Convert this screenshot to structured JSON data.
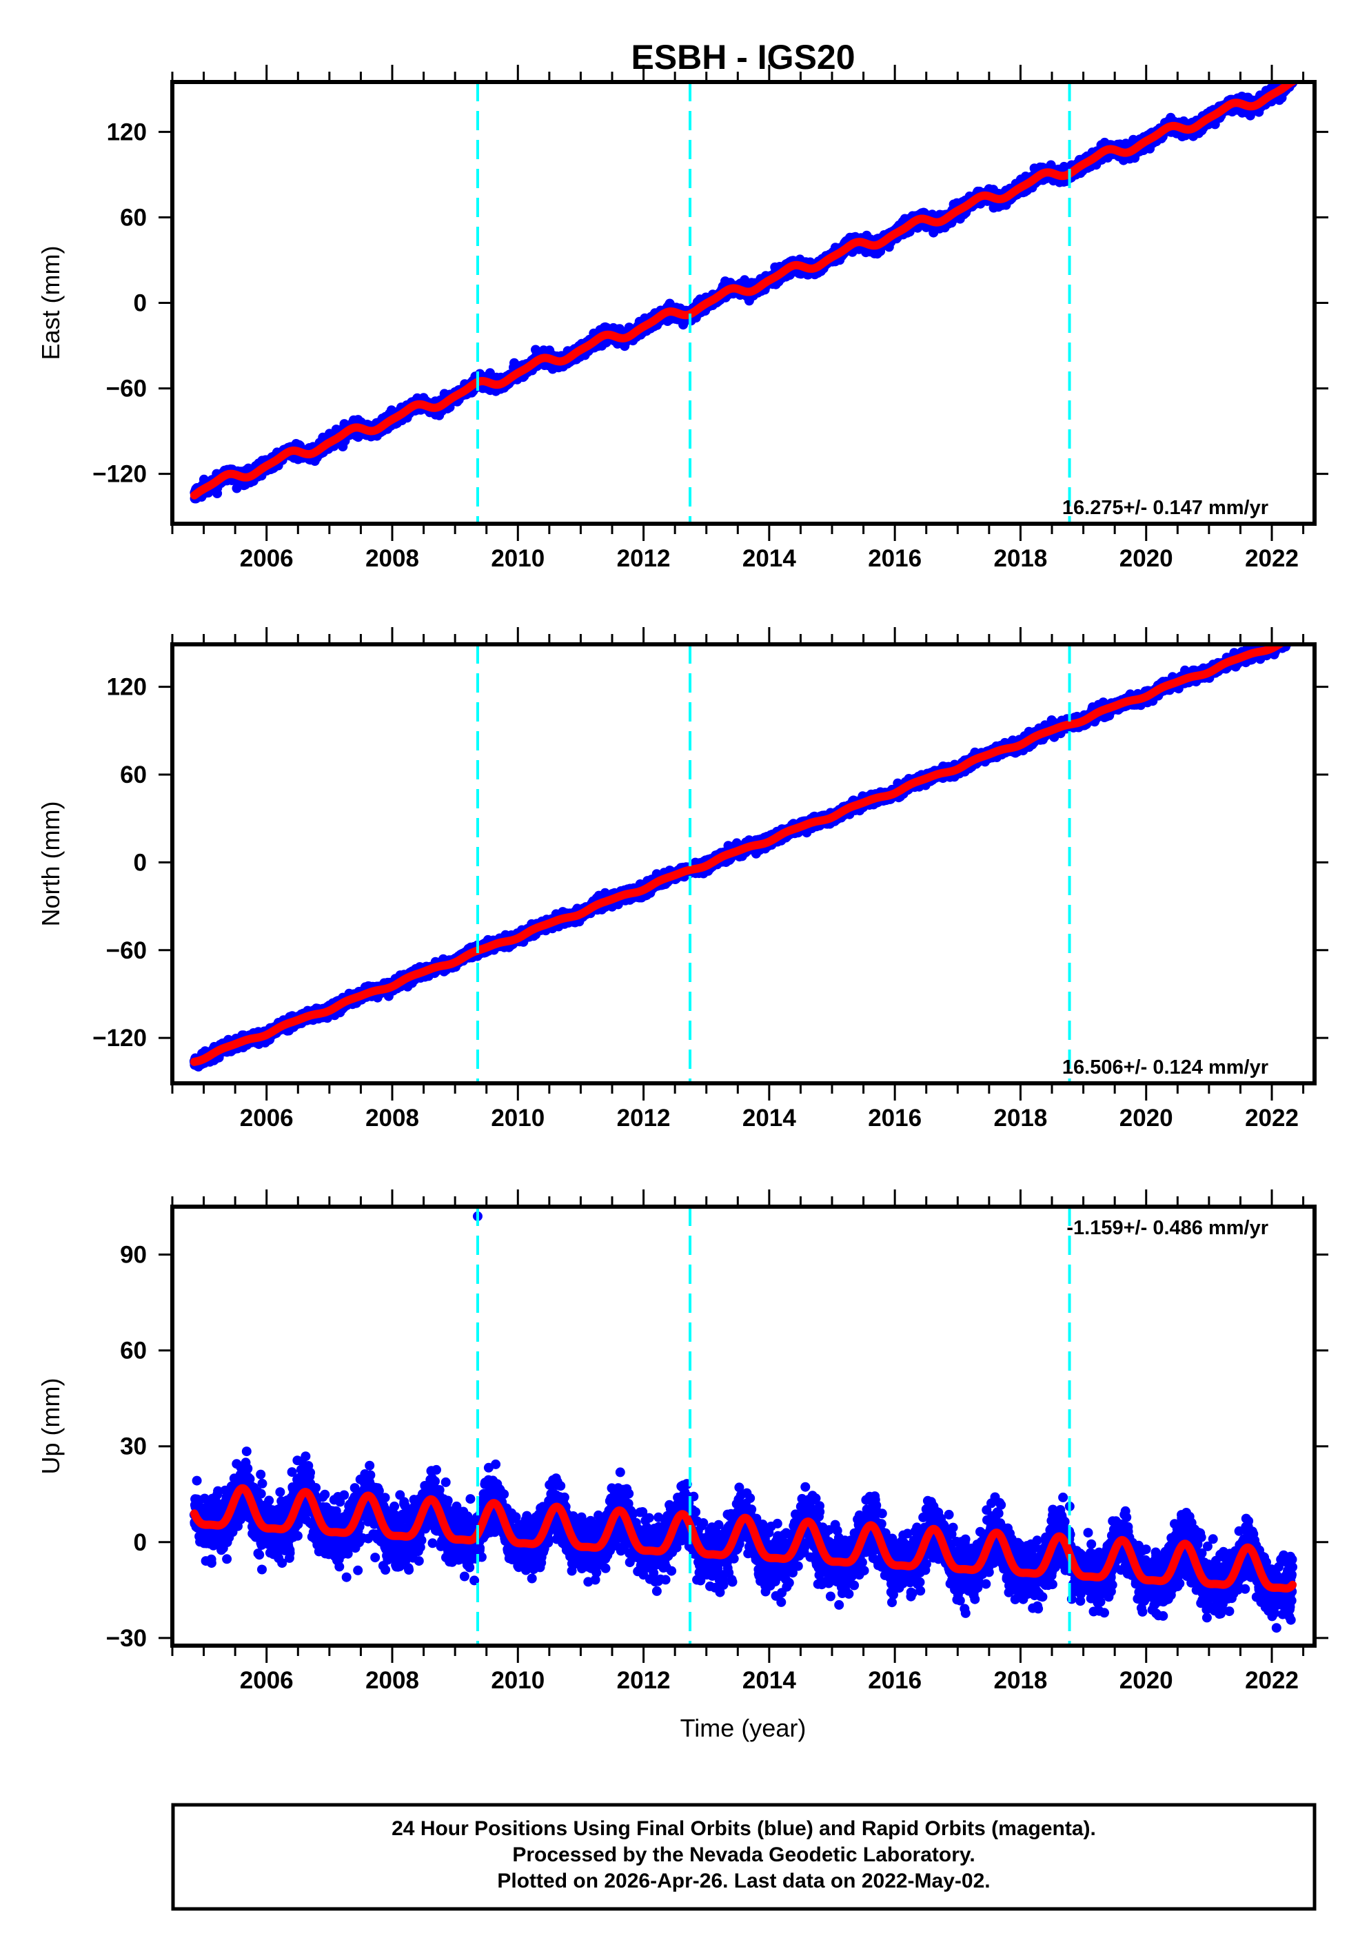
{
  "chart_data": [
    {
      "type": "scatter",
      "panel": "east",
      "title": "ESBH - IGS20",
      "ylabel": "East (mm)",
      "xlabel": "",
      "xlim": [
        2004.5,
        2022.68
      ],
      "ylim": [
        -155,
        155
      ],
      "xticks": [
        2006,
        2008,
        2010,
        2012,
        2014,
        2016,
        2018,
        2020,
        2022
      ],
      "xtick_labels": [
        "2006",
        "2008",
        "2010",
        "2012",
        "2014",
        "2016",
        "2018",
        "2020",
        "2022"
      ],
      "yticks": [
        -120,
        -60,
        0,
        60,
        120
      ],
      "ytick_labels": [
        "−120",
        "−60",
        "0",
        "60",
        "120"
      ],
      "rate_annotation": "16.275+/- 0.147 mm/yr",
      "rate_position": "bottom-right",
      "model": {
        "rate": 16.275,
        "value_at_2013": 0,
        "annual_amp": 3.2,
        "annual_phase": 0.05,
        "semiannual_amp": 1.0,
        "semiannual_phase": 0.3,
        "noise": 2.2
      },
      "data_range": {
        "start_year": 2004.85,
        "end_year": 2022.33,
        "start_value": -143,
        "end_value": 147
      },
      "series": [
        {
          "name": "Final Orbits",
          "kind": "points",
          "color": "#0000ff"
        },
        {
          "name": "Model fit",
          "kind": "line",
          "color": "#ff0000"
        }
      ],
      "steps": [
        2009.36,
        2012.74,
        2018.78
      ],
      "outliers": []
    },
    {
      "type": "scatter",
      "panel": "north",
      "ylabel": "North (mm)",
      "xlabel": "",
      "xlim": [
        2004.5,
        2022.68
      ],
      "ylim": [
        -151,
        149
      ],
      "xticks": [
        2006,
        2008,
        2010,
        2012,
        2014,
        2016,
        2018,
        2020,
        2022
      ],
      "xtick_labels": [
        "2006",
        "2008",
        "2010",
        "2012",
        "2014",
        "2016",
        "2018",
        "2020",
        "2022"
      ],
      "yticks": [
        -120,
        -60,
        0,
        60,
        120
      ],
      "ytick_labels": [
        "−120",
        "−60",
        "0",
        "60",
        "120"
      ],
      "rate_annotation": "16.506+/- 0.124 mm/yr",
      "rate_position": "bottom-right",
      "model": {
        "rate": 16.506,
        "value_at_2013": -1,
        "annual_amp": 1.0,
        "annual_phase": 0.2,
        "semiannual_amp": 0.4,
        "semiannual_phase": 0.1,
        "noise": 1.8
      },
      "data_range": {
        "start_year": 2004.85,
        "end_year": 2022.33,
        "start_value": -145,
        "end_value": 143
      },
      "series": [
        {
          "name": "Final Orbits",
          "kind": "points",
          "color": "#0000ff"
        },
        {
          "name": "Model fit",
          "kind": "line",
          "color": "#ff0000"
        }
      ],
      "steps": [
        2009.36,
        2012.74,
        2018.78
      ],
      "outliers": []
    },
    {
      "type": "scatter",
      "panel": "up",
      "ylabel": "Up (mm)",
      "xlabel": "Time (year)",
      "xlim": [
        2004.5,
        2022.68
      ],
      "ylim": [
        -32.4,
        105
      ],
      "xticks": [
        2006,
        2008,
        2010,
        2012,
        2014,
        2016,
        2018,
        2020,
        2022
      ],
      "xtick_labels": [
        "2006",
        "2008",
        "2010",
        "2012",
        "2014",
        "2016",
        "2018",
        "2020",
        "2022"
      ],
      "yticks": [
        -30,
        0,
        30,
        60,
        90
      ],
      "ytick_labels": [
        "−30",
        "0",
        "30",
        "60",
        "90"
      ],
      "rate_annotation": "-1.159+/- 0.486 mm/yr",
      "rate_position": "top-right",
      "model": {
        "rate": -1.159,
        "value_at_2013": 0.5,
        "annual_amp": 6.0,
        "annual_phase": 0.62,
        "semiannual_amp": 1.8,
        "semiannual_phase": 0.62,
        "noise": 4.5
      },
      "data_range": {
        "start_year": 2004.85,
        "end_year": 2022.33,
        "start_value": 6,
        "end_value": -11
      },
      "series": [
        {
          "name": "Final Orbits",
          "kind": "points",
          "color": "#0000ff"
        },
        {
          "name": "Model fit",
          "kind": "line",
          "color": "#ff0000"
        }
      ],
      "steps": [
        2009.36,
        2012.74,
        2018.78
      ],
      "outliers": [
        {
          "x": 2009.36,
          "y": 102
        }
      ]
    }
  ],
  "colors": {
    "points": "#0000ff",
    "fit": "#ff0000",
    "step_lines": "#00ffff",
    "frame": "#000000"
  },
  "footer": {
    "line1": "24 Hour Positions Using Final Orbits (blue) and Rapid Orbits (magenta).",
    "line2": "Processed by the Nevada Geodetic Laboratory.",
    "line3": "Plotted on 2026-Apr-26. Last data on 2022-May-02."
  }
}
